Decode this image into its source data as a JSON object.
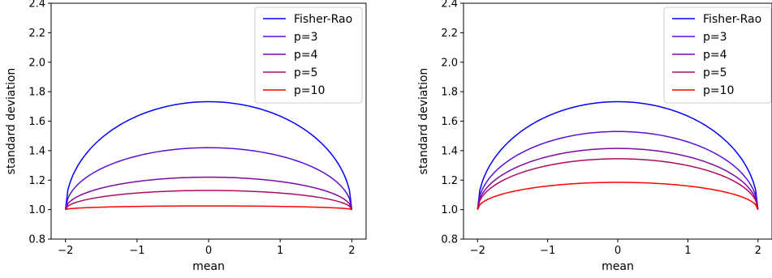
{
  "chart_data": [
    {
      "type": "line",
      "title": "",
      "xlabel": "mean",
      "ylabel": "standard deviation",
      "xlim": [
        -2.2,
        2.2
      ],
      "ylim": [
        0.8,
        2.4
      ],
      "xticks": [
        -2,
        -1,
        0,
        1,
        2
      ],
      "xtick_labels": [
        "−2",
        "−1",
        "0",
        "1",
        "2"
      ],
      "yticks": [
        0.8,
        1.0,
        1.2,
        1.4,
        1.6,
        1.8,
        2.0,
        2.2,
        2.4
      ],
      "ytick_labels": [
        "0.8",
        "1.0",
        "1.2",
        "1.4",
        "1.6",
        "1.8",
        "2.0",
        "2.2",
        "2.4"
      ],
      "grid": false,
      "legend": "top-right",
      "x_range": [
        -2,
        2
      ],
      "endpoint_y": 1.0,
      "series": [
        {
          "name": "Fisher-Rao",
          "peak": 1.732,
          "color": "#0000ff"
        },
        {
          "name": "p=3",
          "peak": 1.42,
          "color": "#5a10d8"
        },
        {
          "name": "p=4",
          "peak": 1.22,
          "color": "#7f0aa0"
        },
        {
          "name": "p=5",
          "peak": 1.13,
          "color": "#b00a60"
        },
        {
          "name": "p=10",
          "peak": 1.025,
          "color": "#ff0000"
        }
      ]
    },
    {
      "type": "line",
      "title": "",
      "xlabel": "mean",
      "ylabel": "standard deviation",
      "xlim": [
        -2.2,
        2.2
      ],
      "ylim": [
        0.8,
        2.4
      ],
      "xticks": [
        -2,
        -1,
        0,
        1,
        2
      ],
      "xtick_labels": [
        "−2",
        "−1",
        "0",
        "1",
        "2"
      ],
      "yticks": [
        0.8,
        1.0,
        1.2,
        1.4,
        1.6,
        1.8,
        2.0,
        2.2,
        2.4
      ],
      "ytick_labels": [
        "0.8",
        "1.0",
        "1.2",
        "1.4",
        "1.6",
        "1.8",
        "2.0",
        "2.2",
        "2.4"
      ],
      "grid": false,
      "legend": "top-right",
      "x_range": [
        -2,
        2
      ],
      "endpoint_y": 1.0,
      "series": [
        {
          "name": "Fisher-Rao",
          "peak": 1.732,
          "color": "#0000ff"
        },
        {
          "name": "p=3",
          "peak": 1.53,
          "color": "#5a10d8"
        },
        {
          "name": "p=4",
          "peak": 1.415,
          "color": "#7f0aa0"
        },
        {
          "name": "p=5",
          "peak": 1.345,
          "color": "#b00a60"
        },
        {
          "name": "p=10",
          "peak": 1.185,
          "color": "#ff0000"
        }
      ]
    }
  ]
}
